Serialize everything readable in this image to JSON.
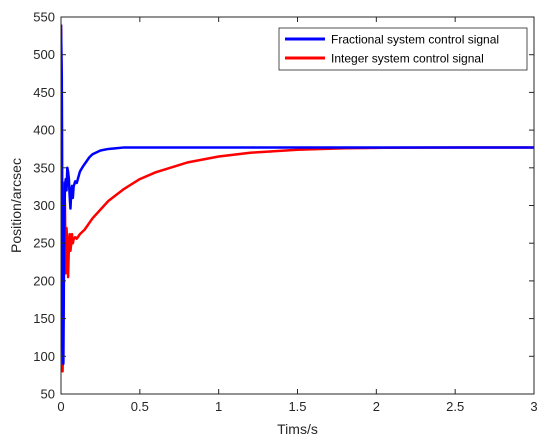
{
  "chart_data": {
    "type": "line",
    "title": "",
    "xlabel": "Tims/s",
    "ylabel": "Position/arcsec",
    "xlim": [
      0,
      3
    ],
    "ylim": [
      50,
      550
    ],
    "xticks": [
      0,
      0.5,
      1,
      1.5,
      2,
      2.5,
      3
    ],
    "xtick_labels": [
      "0",
      "0.5",
      "1",
      "1.5",
      "2",
      "2.5",
      "3"
    ],
    "yticks": [
      50,
      100,
      150,
      200,
      250,
      300,
      350,
      400,
      450,
      500,
      550
    ],
    "ytick_labels": [
      "50",
      "100",
      "150",
      "200",
      "250",
      "300",
      "350",
      "400",
      "450",
      "500",
      "550"
    ],
    "grid": false,
    "legend_position": "top-right",
    "series": [
      {
        "name": "Fractional system control signal",
        "color": "#0000ff",
        "x": [
          0,
          0.005,
          0.01,
          0.015,
          0.02,
          0.025,
          0.03,
          0.035,
          0.04,
          0.045,
          0.05,
          0.055,
          0.06,
          0.065,
          0.07,
          0.075,
          0.08,
          0.09,
          0.1,
          0.12,
          0.14,
          0.16,
          0.18,
          0.2,
          0.25,
          0.3,
          0.35,
          0.4,
          0.5,
          0.6,
          0.8,
          1.0,
          1.5,
          2.0,
          2.5,
          3.0
        ],
        "y": [
          540,
          470,
          120,
          90,
          260,
          325,
          335,
          320,
          350,
          345,
          335,
          312,
          296,
          318,
          326,
          310,
          325,
          332,
          330,
          345,
          352,
          358,
          364,
          368,
          373,
          375,
          376,
          377,
          377,
          377,
          377,
          377,
          377,
          377,
          377,
          377
        ]
      },
      {
        "name": "Integer system control signal",
        "color": "#ff0000",
        "x": [
          0,
          0.005,
          0.01,
          0.015,
          0.02,
          0.025,
          0.03,
          0.035,
          0.04,
          0.045,
          0.05,
          0.055,
          0.06,
          0.065,
          0.07,
          0.075,
          0.08,
          0.09,
          0.1,
          0.12,
          0.15,
          0.2,
          0.3,
          0.4,
          0.5,
          0.6,
          0.8,
          1.0,
          1.2,
          1.5,
          1.8,
          2.0,
          2.5,
          3.0
        ],
        "y": [
          540,
          440,
          80,
          150,
          330,
          300,
          210,
          270,
          250,
          205,
          245,
          262,
          240,
          250,
          262,
          250,
          255,
          258,
          256,
          262,
          268,
          283,
          306,
          322,
          335,
          344,
          357,
          365,
          370,
          374,
          376,
          376.5,
          377,
          377
        ]
      }
    ]
  }
}
